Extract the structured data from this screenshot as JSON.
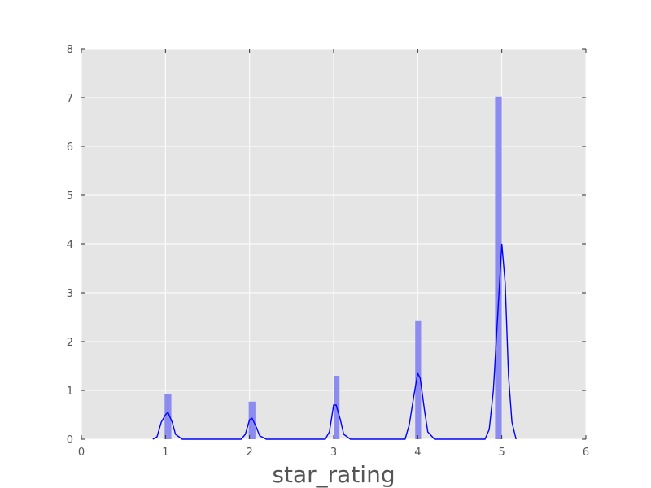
{
  "chart_data": {
    "type": "bar",
    "title": "",
    "xlabel": "star_rating",
    "ylabel": "",
    "xlim": [
      0,
      6
    ],
    "ylim": [
      0,
      8
    ],
    "xticks": [
      0,
      1,
      2,
      3,
      4,
      5,
      6
    ],
    "yticks": [
      0,
      1,
      2,
      3,
      4,
      5,
      6,
      7,
      8
    ],
    "grid": true,
    "legend": "none",
    "colors": {
      "background": "#e5e5e5",
      "grid": "#ffffff",
      "bar": "#8c8cf0",
      "kde_line": "#0000ff",
      "tick_text": "#555555"
    },
    "histogram": {
      "bins": [
        {
          "x_start": 0.99,
          "x_end": 1.07,
          "height": 0.93
        },
        {
          "x_start": 1.99,
          "x_end": 2.07,
          "height": 0.77
        },
        {
          "x_start": 3.0,
          "x_end": 3.07,
          "height": 1.3
        },
        {
          "x_start": 3.97,
          "x_end": 4.04,
          "height": 2.42
        },
        {
          "x_start": 4.92,
          "x_end": 5.0,
          "height": 7.02
        }
      ]
    },
    "kde": {
      "x": [
        0.85,
        0.9,
        0.95,
        1.0,
        1.03,
        1.08,
        1.12,
        1.2,
        1.9,
        1.95,
        2.0,
        2.03,
        2.08,
        2.12,
        2.2,
        2.9,
        2.95,
        3.0,
        3.03,
        3.08,
        3.12,
        3.2,
        3.85,
        3.9,
        3.95,
        4.0,
        4.03,
        4.08,
        4.12,
        4.2,
        4.8,
        4.85,
        4.9,
        4.95,
        5.0,
        5.04,
        5.08,
        5.12,
        5.17
      ],
      "y": [
        0.0,
        0.05,
        0.35,
        0.5,
        0.55,
        0.35,
        0.1,
        0.0,
        0.0,
        0.1,
        0.4,
        0.43,
        0.25,
        0.07,
        0.0,
        0.0,
        0.15,
        0.7,
        0.7,
        0.4,
        0.1,
        0.0,
        0.0,
        0.3,
        0.85,
        1.35,
        1.25,
        0.6,
        0.15,
        0.0,
        0.0,
        0.2,
        1.0,
        2.5,
        4.0,
        3.2,
        1.3,
        0.35,
        0.0
      ]
    }
  }
}
